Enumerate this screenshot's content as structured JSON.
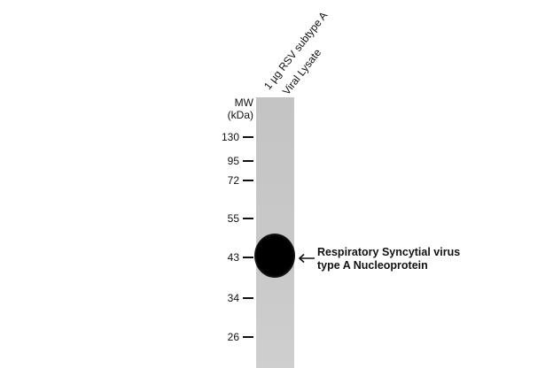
{
  "lane_labels": [
    "1 µg RSV subtype A",
    "Viral Lysate"
  ],
  "mw_header": [
    "MW",
    "(kDa)"
  ],
  "markers": [
    "130",
    "95",
    "72",
    "55",
    "43",
    "34",
    "26"
  ],
  "annotation": [
    "Respiratory  Syncytial virus",
    "type A Nucleoprotein"
  ],
  "icons": {
    "arrow": "left-arrow-icon"
  }
}
